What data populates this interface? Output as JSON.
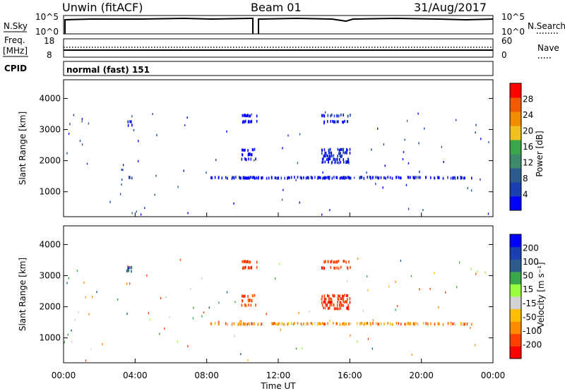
{
  "header": {
    "station": "Unwin (fitACF)",
    "beam": "Beam 01",
    "date": "31/Aug/2017"
  },
  "panel_labels": {
    "nsky": "N.Sky",
    "freq_line1": "Freq.",
    "freq_line2": "[MHz]",
    "cpid": "CPID",
    "nsearch": "N.Search",
    "nave": "Nave",
    "cpid_value": "normal (fast) 151"
  },
  "colors": {
    "power": [
      "#0000ff",
      "#1a3fb0",
      "#2e5b8c",
      "#3c8a6a",
      "#3aa84a",
      "#f0c020",
      "#f08c00",
      "#f05a00",
      "#ff0000"
    ],
    "velocity": [
      "#ff0000",
      "#ff4000",
      "#ff8c00",
      "#ffbf00",
      "#d3d3d3",
      "#9aff40",
      "#3aa84a",
      "#2e5b8c",
      "#1a3fb0",
      "#0000ff"
    ]
  },
  "chart_data": [
    {
      "type": "line",
      "id": "noise-frequency",
      "xlim": [
        "00:00",
        "00:00"
      ],
      "nsky": {
        "tick_labels": [
          "10^5",
          "10^0"
        ],
        "level": "10^5"
      },
      "freq": {
        "tick_labels": [
          "18",
          "8"
        ],
        "right_tick_labels": [
          "60",
          "0"
        ],
        "value_mhz": 11,
        "nave": 11
      }
    },
    {
      "type": "heatmap",
      "id": "power",
      "ylabel": "Slant Range [km]",
      "ylim": [
        200,
        4600
      ],
      "yticks": [
        "1000",
        "2000",
        "3000",
        "4000"
      ],
      "colorbar": {
        "label": "Power [dB]",
        "ticks": [
          "4",
          "8",
          "12",
          "16",
          "20",
          "24",
          "28"
        ],
        "range": [
          0,
          32
        ]
      },
      "echo_bands": [
        {
          "t_start": 9.9,
          "t_end": 10.8,
          "range_km": [
            3450,
            3250,
            2350,
            2200,
            2050,
            1450
          ],
          "db": 4
        },
        {
          "t_start": 14.4,
          "t_end": 16.0,
          "range_km": [
            3450,
            3250,
            2350,
            2250,
            2150,
            2050,
            1950,
            1450
          ],
          "db": 6
        },
        {
          "t_start": 3.5,
          "t_end": 3.8,
          "range_km": [
            3250,
            3150,
            1450
          ],
          "db": 6
        },
        {
          "t_start": 8.2,
          "t_end": 22.8,
          "range_km": [
            1450
          ],
          "db": 5
        }
      ]
    },
    {
      "type": "heatmap",
      "id": "velocity",
      "ylabel": "Slant Range [km]",
      "xlabel": "Time UT",
      "ylim": [
        200,
        4600
      ],
      "yticks": [
        "1000",
        "2000",
        "3000",
        "4000"
      ],
      "xticks": [
        "00:00",
        "04:00",
        "08:00",
        "12:00",
        "16:00",
        "20:00",
        "00:00"
      ],
      "colorbar": {
        "label": "Velocity [m s⁻¹]",
        "ticks": [
          "200",
          "100",
          "50",
          "15",
          "-15",
          "-50",
          "-100",
          "-200"
        ]
      },
      "echo_bands": [
        {
          "t_start": 9.9,
          "t_end": 10.8,
          "range_km": [
            3450,
            3250,
            2350,
            2200,
            2050
          ],
          "vel": -150
        },
        {
          "t_start": 14.4,
          "t_end": 16.0,
          "range_km": [
            3450,
            3250,
            2350,
            2250,
            2150,
            2050,
            1950
          ],
          "vel": -160
        },
        {
          "t_start": 3.5,
          "t_end": 3.8,
          "range_km": [
            3250,
            3150
          ],
          "vel": 150
        },
        {
          "t_start": 8.2,
          "t_end": 22.8,
          "range_km": [
            1450
          ],
          "vel": -60
        }
      ]
    }
  ]
}
